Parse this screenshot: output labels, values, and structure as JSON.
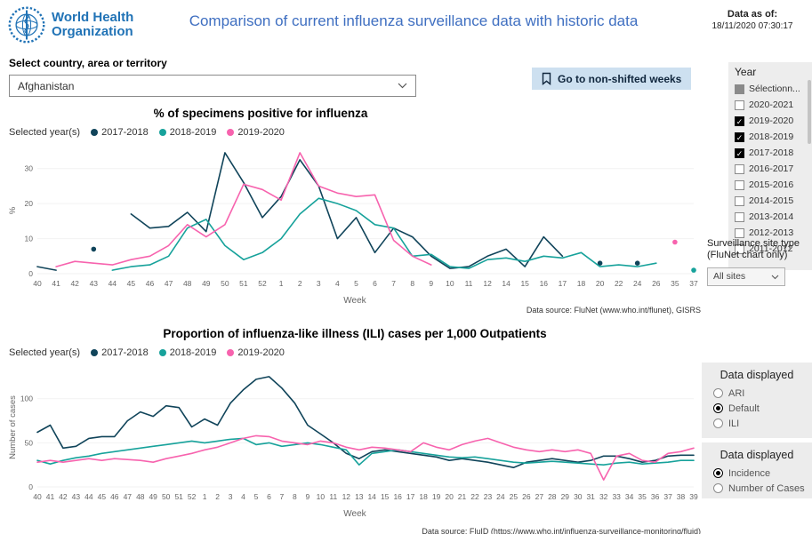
{
  "header": {
    "logo_line1": "World Health",
    "logo_line2": "Organization",
    "title": "Comparison of current influenza surveillance data with historic data",
    "data_as_of_label": "Data as of:",
    "data_as_of_value": "18/11/2020 07:30:17"
  },
  "colors": {
    "who_blue": "#2173b6",
    "title_blue": "#3f6fc1",
    "button_bg": "#cde0f0",
    "panel_gray": "#ececec",
    "series_2017_2018": "#10445a",
    "series_2018_2019": "#17a29b",
    "series_2019_2020": "#f763ae"
  },
  "filters": {
    "country_label": "Select country, area or territory",
    "country_value": "Afghanistan",
    "bookmark_button": "Go to non-shifted weeks",
    "year_slicer": {
      "title": "Year",
      "items": [
        {
          "label": "Sélectionn...",
          "state": "indeterminate"
        },
        {
          "label": "2020-2021",
          "state": "unchecked"
        },
        {
          "label": "2019-2020",
          "state": "checked"
        },
        {
          "label": "2018-2019",
          "state": "checked"
        },
        {
          "label": "2017-2018",
          "state": "checked"
        },
        {
          "label": "2016-2017",
          "state": "unchecked"
        },
        {
          "label": "2015-2016",
          "state": "unchecked"
        },
        {
          "label": "2014-2015",
          "state": "unchecked"
        },
        {
          "label": "2013-2014",
          "state": "unchecked"
        },
        {
          "label": "2012-2013",
          "state": "unchecked"
        },
        {
          "label": "2011-2012",
          "state": "unchecked"
        }
      ]
    },
    "site_type": {
      "label": "Surveillance site type (FluNet chart only)",
      "value": "All sites"
    },
    "data_displayed_1": {
      "title": "Data displayed",
      "options": [
        {
          "label": "ARI",
          "selected": false
        },
        {
          "label": "Default",
          "selected": true
        },
        {
          "label": "ILI",
          "selected": false
        }
      ]
    },
    "data_displayed_2": {
      "title": "Data displayed",
      "options": [
        {
          "label": "Incidence",
          "selected": true
        },
        {
          "label": "Number of Cases",
          "selected": false
        }
      ]
    }
  },
  "chart_data": [
    {
      "type": "line",
      "title": "% of specimens positive for influenza",
      "legend_label": "Selected year(s)",
      "xlabel": "Week",
      "ylabel": "%",
      "ylim": [
        0,
        36
      ],
      "yticks": [
        0,
        10,
        20,
        30
      ],
      "grid": false,
      "legend_position": "top-left",
      "source": "Data source: FluNet (www.who.int/flunet), GISRS",
      "categories": [
        "40",
        "41",
        "42",
        "43",
        "44",
        "45",
        "46",
        "47",
        "48",
        "49",
        "50",
        "51",
        "52",
        "1",
        "2",
        "3",
        "4",
        "5",
        "6",
        "7",
        "8",
        "9",
        "10",
        "11",
        "12",
        "14",
        "15",
        "16",
        "17",
        "18",
        "20",
        "22",
        "24",
        "26",
        "35",
        "37"
      ],
      "series": [
        {
          "name": "2017-2018",
          "color": "#10445a",
          "values": [
            2,
            1,
            null,
            7,
            null,
            17,
            13,
            13.5,
            17.5,
            12,
            34.5,
            26,
            16,
            22,
            32.5,
            25,
            10,
            16,
            6,
            13,
            10.5,
            5,
            1.5,
            2,
            5,
            7,
            2,
            10.5,
            5,
            null,
            3,
            null,
            3,
            null,
            null,
            null
          ]
        },
        {
          "name": "2018-2019",
          "color": "#17a29b",
          "values": [
            null,
            null,
            null,
            null,
            1,
            2,
            2.5,
            5,
            13,
            15.5,
            8,
            4,
            6,
            10,
            17,
            21.5,
            20,
            18,
            14,
            13,
            5,
            5.5,
            2,
            1.5,
            4,
            4.5,
            3.5,
            5,
            4.5,
            6,
            2,
            2.5,
            2,
            3,
            null,
            1
          ]
        },
        {
          "name": "2019-2020",
          "color": "#f763ae",
          "values": [
            null,
            2,
            3.5,
            3,
            2.5,
            4,
            5,
            8,
            14,
            10.5,
            14,
            25.5,
            24,
            21,
            34.5,
            25,
            23,
            22,
            22.5,
            9.5,
            5,
            2.5,
            null,
            null,
            null,
            null,
            null,
            null,
            null,
            null,
            null,
            null,
            null,
            null,
            9,
            null
          ]
        }
      ]
    },
    {
      "type": "line",
      "title": "Proportion of influenza-like illness (ILI) cases per 1,000 Outpatients",
      "legend_label": "Selected year(s)",
      "xlabel": "Week",
      "ylabel": "Number of cases",
      "ylim": [
        0,
        135
      ],
      "yticks": [
        0,
        50,
        100
      ],
      "grid": false,
      "legend_position": "top-left",
      "source": "Data source: FluID (https://www.who.int/influenza-surveillance-monitoring/fluid)",
      "categories": [
        "40",
        "41",
        "42",
        "43",
        "44",
        "45",
        "46",
        "47",
        "48",
        "49",
        "50",
        "51",
        "52",
        "1",
        "2",
        "3",
        "4",
        "5",
        "6",
        "7",
        "8",
        "9",
        "10",
        "11",
        "12",
        "13",
        "14",
        "15",
        "16",
        "17",
        "18",
        "19",
        "20",
        "21",
        "22",
        "23",
        "24",
        "25",
        "26",
        "27",
        "28",
        "29",
        "30",
        "31",
        "32",
        "33",
        "34",
        "35",
        "36",
        "37",
        "38",
        "39"
      ],
      "series": [
        {
          "name": "2017-2018",
          "color": "#10445a",
          "values": [
            62,
            70,
            44,
            46,
            55,
            57,
            57,
            75,
            85,
            80,
            92,
            90,
            68,
            77,
            70,
            95,
            110,
            122,
            125,
            112,
            95,
            70,
            60,
            50,
            38,
            32,
            40,
            42,
            40,
            38,
            36,
            34,
            30,
            32,
            30,
            28,
            25,
            22,
            28,
            30,
            32,
            30,
            28,
            30,
            35,
            35,
            32,
            28,
            30,
            35,
            36,
            36
          ]
        },
        {
          "name": "2018-2019",
          "color": "#17a29b",
          "values": [
            30,
            26,
            30,
            33,
            35,
            38,
            40,
            42,
            44,
            46,
            48,
            50,
            52,
            50,
            52,
            54,
            55,
            48,
            50,
            46,
            48,
            50,
            48,
            45,
            42,
            25,
            38,
            40,
            42,
            40,
            38,
            36,
            34,
            33,
            34,
            32,
            30,
            28,
            27,
            28,
            29,
            28,
            27,
            26,
            25,
            27,
            28,
            26,
            27,
            28,
            30,
            30
          ]
        },
        {
          "name": "2019-2020",
          "color": "#f763ae",
          "values": [
            28,
            30,
            28,
            30,
            32,
            30,
            32,
            31,
            30,
            28,
            32,
            35,
            38,
            42,
            45,
            50,
            55,
            58,
            57,
            52,
            50,
            48,
            52,
            50,
            45,
            42,
            45,
            44,
            42,
            40,
            50,
            45,
            42,
            48,
            52,
            55,
            50,
            45,
            42,
            40,
            42,
            40,
            42,
            38,
            8,
            35,
            38,
            30,
            28,
            38,
            40,
            44
          ]
        }
      ]
    }
  ]
}
